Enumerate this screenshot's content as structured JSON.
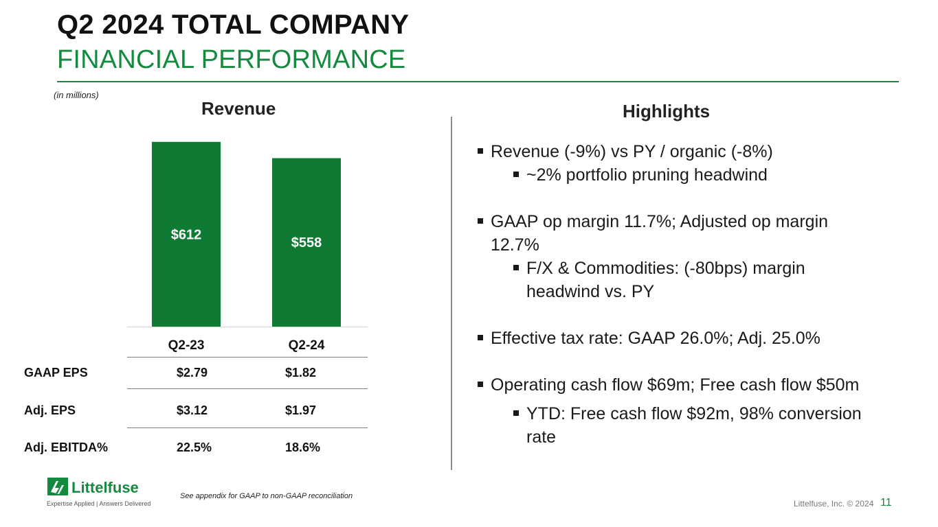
{
  "title": {
    "main": "Q2 2024 TOTAL COMPANY",
    "sub": "FINANCIAL PERFORMANCE"
  },
  "units_note": "(in millions)",
  "revenue_heading": "Revenue",
  "highlights_heading": "Highlights",
  "colors": {
    "brand_green": "#138a3e",
    "bar_green": "#0e7a34"
  },
  "chart_data": {
    "type": "bar",
    "title": "Revenue",
    "categories": [
      "Q2-23",
      "Q2-24"
    ],
    "values": [
      612,
      558
    ],
    "value_labels": [
      "$612",
      "$558"
    ],
    "ylim": [
      0,
      650
    ],
    "xlabel": "",
    "ylabel": ""
  },
  "table": {
    "rows": [
      {
        "label": "GAAP EPS",
        "q2_23": "$2.79",
        "q2_24": "$1.82"
      },
      {
        "label": "Adj. EPS",
        "q2_23": "$3.12",
        "q2_24": "$1.97"
      },
      {
        "label": "Adj. EBITDA%",
        "q2_23": "22.5%",
        "q2_24": "18.6%"
      }
    ]
  },
  "highlights": {
    "b1": "Revenue (-9%) vs PY / organic (-8%)",
    "b1a": "~2% portfolio pruning headwind",
    "b2_line1": "GAAP op margin 11.7%; Adjusted op margin",
    "b2_line2": "12.7%",
    "b2a_line1": "F/X & Commodities: (-80bps) margin",
    "b2a_line2": "headwind vs. PY",
    "b3": "Effective tax rate: GAAP 26.0%; Adj. 25.0%",
    "b4": "Operating cash flow $69m; Free cash flow $50m",
    "b4a_line1": "YTD: Free cash flow $92m, 98% conversion",
    "b4a_line2": "rate"
  },
  "footer": {
    "logo_word": "Littelfuse",
    "tagline": "Expertise Applied | Answers Delivered",
    "footnote": "See appendix for GAAP to non-GAAP reconciliation",
    "copyright": "Littelfuse, Inc. © 2024",
    "page_number": "11"
  }
}
